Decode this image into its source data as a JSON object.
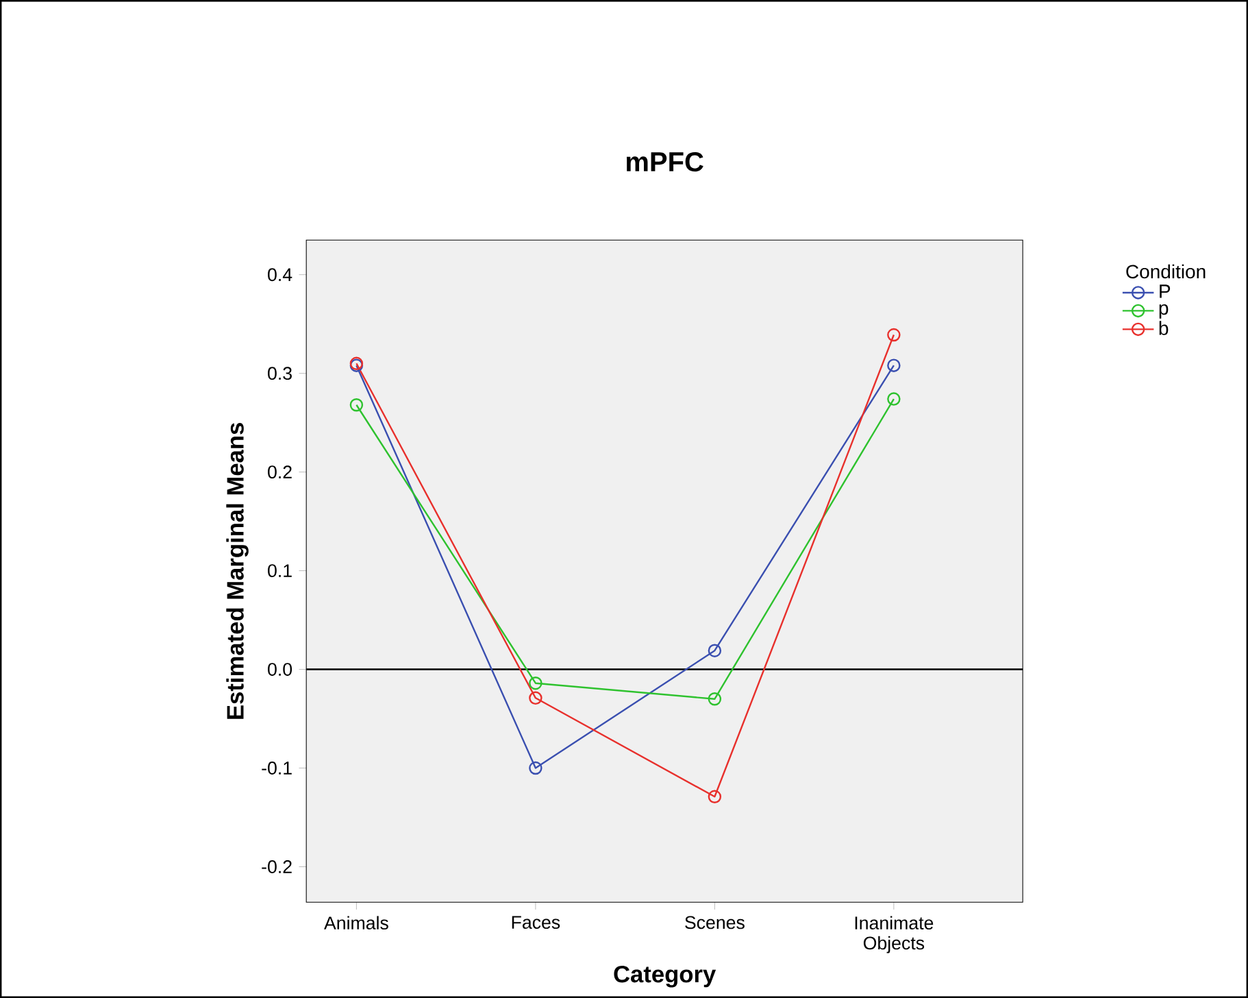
{
  "chart_data": {
    "type": "line",
    "title": "mPFC",
    "xlabel": "Category",
    "ylabel": "Estimated Marginal Means",
    "legend_title": "Condition",
    "categories": [
      "Animals",
      "Faces",
      "Scenes",
      "Inanimate Objects"
    ],
    "series": [
      {
        "name": "P",
        "color": "#3a4fb0",
        "values": [
          0.308,
          -0.1,
          0.019,
          0.308
        ]
      },
      {
        "name": "p",
        "color": "#2ec22e",
        "values": [
          0.268,
          -0.014,
          -0.03,
          0.274
        ]
      },
      {
        "name": "b",
        "color": "#e8302c",
        "values": [
          0.31,
          -0.029,
          -0.129,
          0.339
        ]
      }
    ],
    "ylim": [
      -0.236,
      0.435
    ],
    "yticks": [
      -0.2,
      -0.1,
      {
        "value": 0,
        "label": "0.0"
      },
      0.1,
      0.2,
      0.3,
      0.4
    ],
    "ref_lines": [
      {
        "axis": "y",
        "value": 0,
        "color": "#000000"
      }
    ],
    "grid": false,
    "legend": "right",
    "marker": "circle",
    "line_style": "solid"
  }
}
